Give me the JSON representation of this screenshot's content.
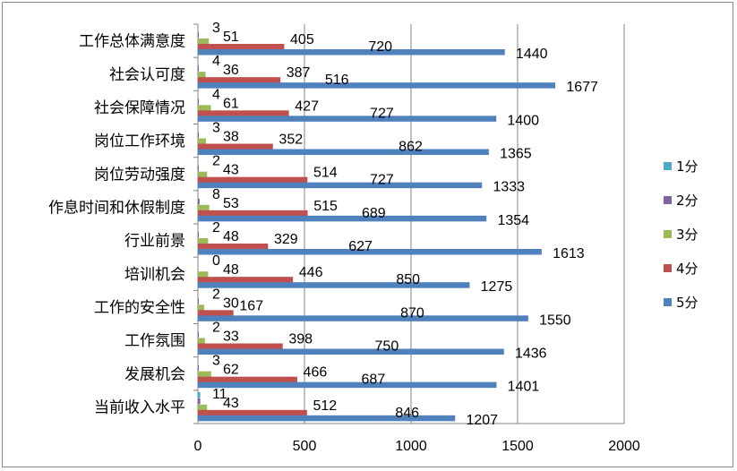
{
  "chart_data": {
    "type": "bar",
    "orientation": "horizontal",
    "title": "",
    "xlabel": "",
    "ylabel": "",
    "xlim": [
      0,
      2000
    ],
    "x_ticks": [
      0,
      500,
      1000,
      1500,
      2000
    ],
    "grid": "vertical",
    "legend_position": "right",
    "categories": [
      "工作总体满意度",
      "社会认可度",
      "社会保障情况",
      "岗位工作环境",
      "岗位劳动强度",
      "作息时间和休假制度",
      "行业前景",
      "培训机会",
      "工作的安全性",
      "工作氛围",
      "发展机会",
      "当前收入水平"
    ],
    "series": [
      {
        "name": "1分",
        "color": "#4bacc6",
        "values": [
          0,
          0,
          0,
          0,
          0,
          0,
          0,
          0,
          0,
          0,
          0,
          11
        ]
      },
      {
        "name": "2分",
        "color": "#8064a2",
        "values": [
          3,
          4,
          4,
          3,
          2,
          8,
          2,
          0,
          2,
          2,
          3,
          11
        ]
      },
      {
        "name": "3分",
        "color": "#9bbb59",
        "values": [
          51,
          36,
          61,
          38,
          43,
          53,
          48,
          48,
          30,
          33,
          62,
          43
        ]
      },
      {
        "name": "4分",
        "color": "#c0504d",
        "values": [
          405,
          387,
          427,
          352,
          514,
          515,
          329,
          446,
          167,
          398,
          466,
          512
        ]
      },
      {
        "name": "5分",
        "color": "#4f81bd",
        "values": [
          720,
          516,
          727,
          862,
          727,
          689,
          627,
          850,
          870,
          750,
          687,
          846
        ]
      },
      {
        "name": "",
        "color": "#4f81bd",
        "values": [
          1440,
          1677,
          1400,
          1365,
          1333,
          1354,
          1613,
          1275,
          1550,
          1436,
          1401,
          1207
        ]
      }
    ],
    "data_labels": [
      [
        "3",
        "51",
        "405",
        "720",
        "1440"
      ],
      [
        "4",
        "36",
        "387",
        "516",
        "1677"
      ],
      [
        "4",
        "61",
        "427",
        "727",
        "1400"
      ],
      [
        "3",
        "38",
        "352",
        "862",
        "1365"
      ],
      [
        "2",
        "43",
        "514",
        "727",
        "1333"
      ],
      [
        "8",
        "53",
        "515",
        "689",
        "1354"
      ],
      [
        "2",
        "48",
        "329",
        "627",
        "1613"
      ],
      [
        "0",
        "48",
        "446",
        "850",
        "1275"
      ],
      [
        "2",
        "30",
        "167",
        "870",
        "1550"
      ],
      [
        "2",
        "33",
        "398",
        "750",
        "1436"
      ],
      [
        "3",
        "62",
        "466",
        "687",
        "1401"
      ],
      [
        "11",
        "43",
        "512",
        "846",
        "1207"
      ]
    ],
    "legend": [
      "1分",
      "2分",
      "3分",
      "4分",
      "5分"
    ]
  },
  "colors": {
    "purple": "#8064a2",
    "green": "#9bbb59",
    "red": "#c0504d",
    "blue": "#4f81bd",
    "cyan": "#4bacc6",
    "grid": "#868686"
  }
}
